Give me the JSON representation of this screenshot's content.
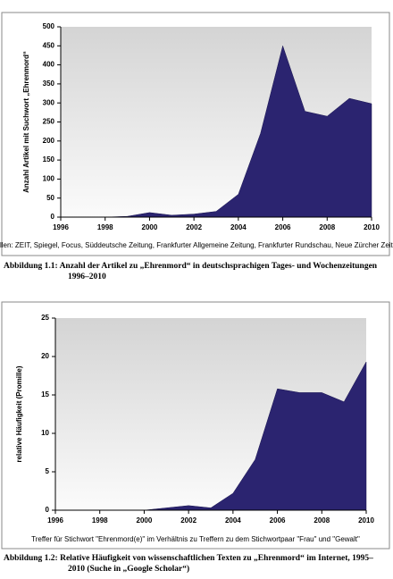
{
  "chart_data": [
    {
      "type": "area",
      "y_label": "Anzahl Artikel mit Suchwort „Ehrenmord“",
      "note": "Quellen: ZEIT, Spiegel, Focus, Süddeutsche Zeitung, Frankfurter Allgemeine Zeitung, Frankfurter Rundschau, Neue Zürcher Zeitung",
      "caption": "Abbildung 1.1: Anzahl der Artikel zu „Ehrenmord“ in deutschsprachigen Tages- und Wochenzeitungen 1996–2010",
      "x": [
        1996,
        1997,
        1998,
        1999,
        2000,
        2001,
        2002,
        2003,
        2004,
        2005,
        2006,
        2007,
        2008,
        2009,
        2010
      ],
      "values": [
        0,
        0,
        0,
        2,
        12,
        5,
        8,
        15,
        60,
        220,
        450,
        278,
        265,
        312,
        298
      ],
      "color": "#2b2470",
      "xlim": [
        1996,
        2010
      ],
      "xticks": [
        1996,
        1998,
        2000,
        2002,
        2004,
        2006,
        2008,
        2010
      ],
      "ylim": [
        0,
        500
      ],
      "yticks": [
        0,
        50,
        100,
        150,
        200,
        250,
        300,
        350,
        400,
        450,
        500
      ]
    },
    {
      "type": "area",
      "y_label": "relative Häufigkeit (Promille)",
      "note": "Treffer für Stichwort \"Ehrenmord(e)\" im Verhältnis zu Treffern zu dem Stichwortpaar \"Frau\" und \"Gewalt\"",
      "caption": "Abbildung 1.2: Relative Häufigkeit von wissenschaftlichen Texten zu „Ehrenmord“ im Internet, 1995–2010 (Suche in „Google Scholar“)",
      "x": [
        1996,
        1997,
        1998,
        1999,
        2000,
        2001,
        2002,
        2003,
        2004,
        2005,
        2006,
        2007,
        2008,
        2009,
        2010
      ],
      "values": [
        0,
        0,
        0,
        0,
        0,
        0.3,
        0.6,
        0.3,
        2.2,
        6.6,
        15.8,
        15.3,
        15.3,
        14.1,
        19.3
      ],
      "color": "#2b2470",
      "xlim": [
        1996,
        2010
      ],
      "xticks": [
        1996,
        1998,
        2000,
        2002,
        2004,
        2006,
        2008,
        2010
      ],
      "ylim": [
        0,
        25
      ],
      "yticks": [
        0,
        5,
        10,
        15,
        20,
        25
      ]
    }
  ]
}
